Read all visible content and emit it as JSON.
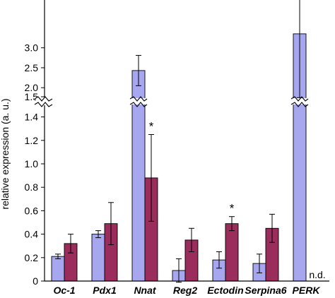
{
  "chart_data": {
    "type": "bar",
    "title": "",
    "xlabel": "",
    "ylabel": "relative expression (a. u.)",
    "categories": [
      "Oc-1",
      "Pdx1",
      "Nnat",
      "Reg2",
      "Ectodin",
      "Serpina6",
      "PERK"
    ],
    "series": [
      {
        "color": "#a7a7f0",
        "values": [
          0.21,
          0.4,
          2.43,
          0.09,
          0.18,
          0.15,
          3.35
        ],
        "errors": [
          0.02,
          0.03,
          0.38,
          0.1,
          0.07,
          0.08,
          1.6
        ]
      },
      {
        "color": "#9b2d5c",
        "values": [
          0.32,
          0.49,
          0.88,
          0.35,
          0.49,
          0.45,
          null
        ],
        "errors": [
          0.08,
          0.18,
          0.37,
          0.1,
          0.06,
          0.12,
          null
        ]
      }
    ],
    "axis_lower": {
      "ylim": [
        0,
        1.5
      ],
      "ticks": [
        "0",
        "0.2",
        "0.4",
        "0.6",
        "0.8",
        "1.0",
        "1.2",
        "1.4"
      ]
    },
    "axis_upper": {
      "ylim": [
        1.72,
        3.4
      ],
      "ticks": [
        "1.5",
        "2.0",
        "2.5",
        "3.0"
      ]
    },
    "axis_break": true,
    "grid": false,
    "legend": false,
    "significance": [
      "",
      "",
      "*",
      "",
      "*",
      "",
      ""
    ],
    "annotations": [
      "",
      "",
      "",
      "",
      "",
      "",
      "n.d."
    ]
  }
}
